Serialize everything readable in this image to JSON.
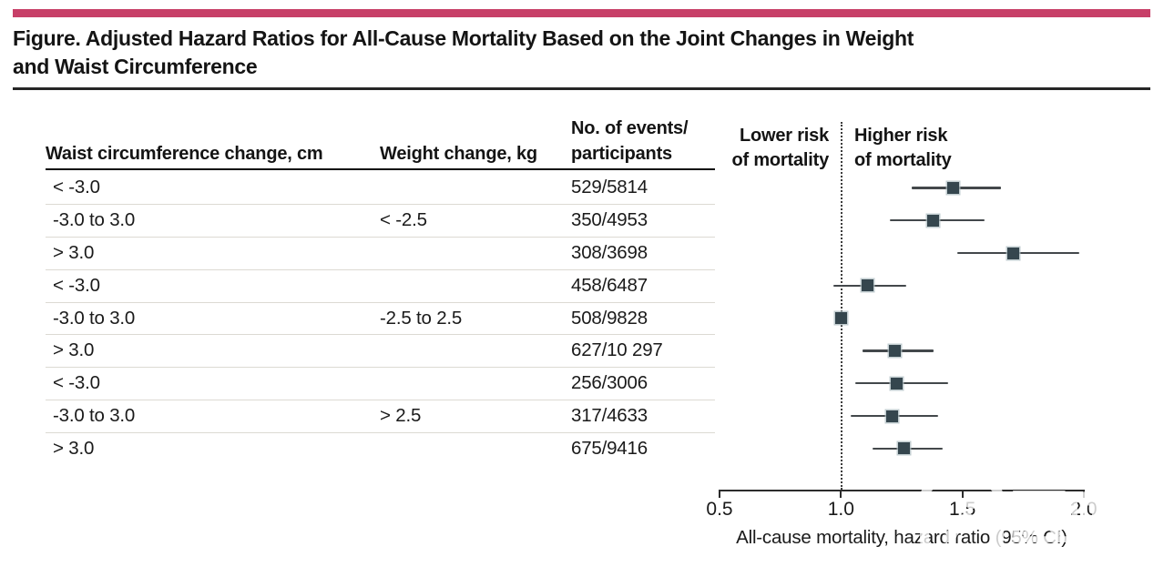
{
  "figure": {
    "title_line1": "Figure. Adjusted Hazard Ratios for All-Cause Mortality Based on the Joint Changes in Weight",
    "title_line2": "and Waist Circumference"
  },
  "table": {
    "col1_header": "Waist circumference change, cm",
    "col2_header": "Weight change, kg",
    "col3_header_line1": "No. of events/",
    "col3_header_line2": "participants"
  },
  "plot": {
    "left_region_label_line1": "Lower risk",
    "left_region_label_line2": "of mortality",
    "right_region_label_line1": "Higher risk",
    "right_region_label_line2": "of mortality",
    "axis_label": "All-cause mortality, hazard ratio (95% CI)",
    "tick_labels": [
      "0.5",
      "1.0",
      "1.5",
      "2.0"
    ]
  },
  "watermark": {
    "text": "医咖会",
    "subtitle": "GROUP"
  },
  "colors": {
    "accent_pink": "#c73f68",
    "marker_fill": "#35464e",
    "ci_line": "#43484b",
    "row_separator": "#dcdad3"
  },
  "chart_data": {
    "type": "forest",
    "title": "Figure. Adjusted Hazard Ratios for All-Cause Mortality Based on the Joint Changes in Weight and Waist Circumference",
    "xlabel": "All-cause mortality, hazard ratio (95% CI)",
    "xlim": [
      0.5,
      2.0
    ],
    "xticks": [
      0.5,
      1.0,
      1.5,
      2.0
    ],
    "reference_line": 1.0,
    "grid": false,
    "rows": [
      {
        "waist_change_cm": "< -3.0",
        "weight_change_kg": "",
        "events_participants": "529/5814",
        "hr": 1.46,
        "ci_low": 1.29,
        "ci_high": 1.66,
        "reference": false
      },
      {
        "waist_change_cm": "-3.0 to 3.0",
        "weight_change_kg": "< -2.5",
        "events_participants": "350/4953",
        "hr": 1.38,
        "ci_low": 1.2,
        "ci_high": 1.59,
        "reference": false
      },
      {
        "waist_change_cm": "> 3.0",
        "weight_change_kg": "",
        "events_participants": "308/3698",
        "hr": 1.71,
        "ci_low": 1.48,
        "ci_high": 1.98,
        "reference": false
      },
      {
        "waist_change_cm": "< -3.0",
        "weight_change_kg": "",
        "events_participants": "458/6487",
        "hr": 1.11,
        "ci_low": 0.97,
        "ci_high": 1.27,
        "reference": false
      },
      {
        "waist_change_cm": "-3.0 to 3.0",
        "weight_change_kg": "-2.5 to 2.5",
        "events_participants": "508/9828",
        "hr": 1.0,
        "ci_low": null,
        "ci_high": null,
        "reference": true
      },
      {
        "waist_change_cm": "> 3.0",
        "weight_change_kg": "",
        "events_participants": "627/10 297",
        "hr": 1.22,
        "ci_low": 1.09,
        "ci_high": 1.38,
        "reference": false
      },
      {
        "waist_change_cm": "< -3.0",
        "weight_change_kg": "",
        "events_participants": "256/3006",
        "hr": 1.23,
        "ci_low": 1.06,
        "ci_high": 1.44,
        "reference": false
      },
      {
        "waist_change_cm": "-3.0 to 3.0",
        "weight_change_kg": "> 2.5",
        "events_participants": "317/4633",
        "hr": 1.21,
        "ci_low": 1.04,
        "ci_high": 1.4,
        "reference": false
      },
      {
        "waist_change_cm": "> 3.0",
        "weight_change_kg": "",
        "events_participants": "675/9416",
        "hr": 1.26,
        "ci_low": 1.13,
        "ci_high": 1.42,
        "reference": false
      }
    ]
  }
}
